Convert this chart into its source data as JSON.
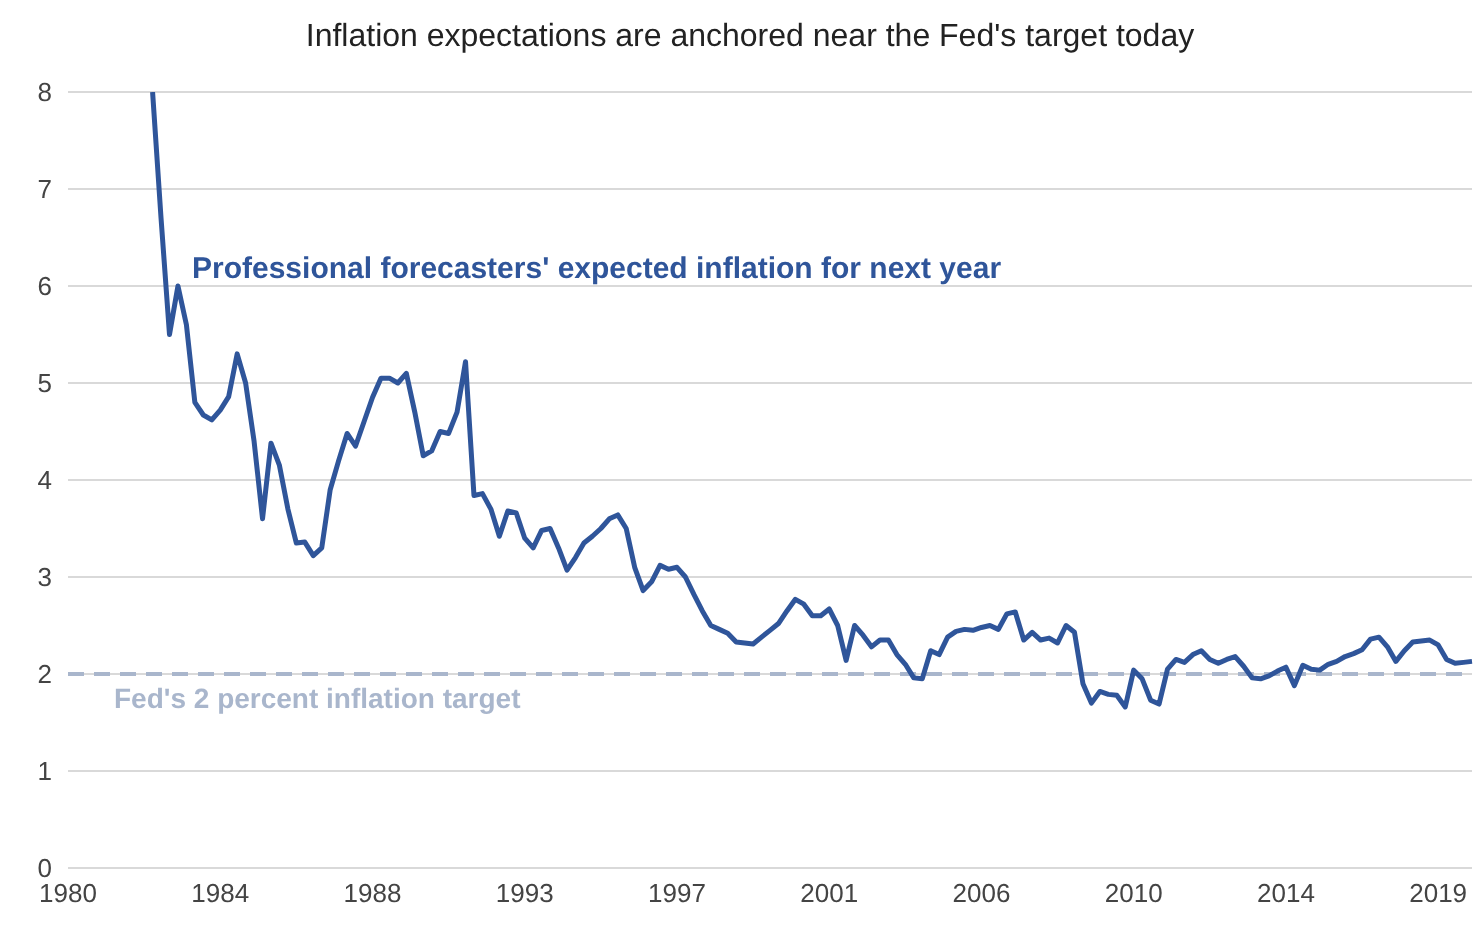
{
  "chart_data": {
    "type": "line",
    "title": "Inflation expectations are anchored near the Fed's target today",
    "categories": [
      "1980",
      null,
      null,
      null,
      null,
      null,
      null,
      null,
      null,
      null,
      null,
      null,
      null,
      null,
      null,
      null,
      null,
      null,
      "1984",
      null,
      null,
      null,
      null,
      null,
      null,
      null,
      null,
      null,
      null,
      null,
      null,
      null,
      null,
      null,
      null,
      null,
      "1988",
      null,
      null,
      null,
      null,
      null,
      null,
      null,
      null,
      null,
      null,
      null,
      null,
      null,
      null,
      null,
      null,
      null,
      "1993",
      null,
      null,
      null,
      null,
      null,
      null,
      null,
      null,
      null,
      null,
      null,
      null,
      null,
      null,
      null,
      null,
      null,
      "1997",
      null,
      null,
      null,
      null,
      null,
      null,
      null,
      null,
      null,
      null,
      null,
      null,
      null,
      null,
      null,
      null,
      null,
      "2001",
      null,
      null,
      null,
      null,
      null,
      null,
      null,
      null,
      null,
      null,
      null,
      null,
      null,
      null,
      null,
      null,
      null,
      "2006",
      null,
      null,
      null,
      null,
      null,
      null,
      null,
      null,
      null,
      null,
      null,
      null,
      null,
      null,
      null,
      null,
      null,
      "2010",
      null,
      null,
      null,
      null,
      null,
      null,
      null,
      null,
      null,
      null,
      null,
      null,
      null,
      null,
      null,
      null,
      null,
      "2014",
      null,
      null,
      null,
      null,
      null,
      null,
      null,
      null,
      null,
      null,
      null,
      null,
      null,
      null,
      null,
      null,
      null,
      "2019",
      null,
      null,
      null,
      null
    ],
    "series": [
      {
        "name": "Professional forecasters' expected inflation for next year",
        "color": "#2f559a",
        "values": [
          null,
          null,
          null,
          null,
          null,
          null,
          null,
          null,
          null,
          null,
          8.0,
          6.7,
          5.5,
          6.0,
          5.6,
          4.8,
          4.67,
          4.62,
          4.72,
          4.86,
          5.3,
          5.0,
          4.4,
          3.6,
          4.38,
          4.15,
          3.7,
          3.35,
          3.36,
          3.22,
          3.3,
          3.9,
          4.2,
          4.48,
          4.35,
          4.6,
          4.85,
          5.05,
          5.05,
          5.0,
          5.1,
          4.7,
          4.25,
          4.3,
          4.5,
          4.48,
          4.7,
          5.22,
          3.84,
          3.86,
          3.7,
          3.42,
          3.68,
          3.66,
          3.4,
          3.3,
          3.48,
          3.5,
          3.3,
          3.07,
          3.2,
          3.35,
          3.42,
          3.5,
          3.6,
          3.64,
          3.5,
          3.1,
          2.86,
          2.95,
          3.12,
          3.08,
          3.1,
          3.0,
          2.82,
          2.65,
          2.5,
          2.46,
          2.42,
          2.33,
          2.32,
          2.31,
          2.38,
          2.45,
          2.52,
          2.65,
          2.77,
          2.72,
          2.6,
          2.6,
          2.67,
          2.5,
          2.14,
          2.5,
          2.4,
          2.28,
          2.35,
          2.35,
          2.2,
          2.1,
          1.96,
          1.95,
          2.24,
          2.2,
          2.38,
          2.44,
          2.46,
          2.45,
          2.48,
          2.5,
          2.46,
          2.62,
          2.64,
          2.35,
          2.43,
          2.35,
          2.37,
          2.32,
          2.5,
          2.43,
          1.9,
          1.7,
          1.82,
          1.79,
          1.78,
          1.66,
          2.04,
          1.95,
          1.73,
          1.69,
          2.05,
          2.15,
          2.12,
          2.2,
          2.24,
          2.15,
          2.11,
          2.15,
          2.18,
          2.08,
          1.96,
          1.95,
          1.98,
          2.03,
          2.07,
          1.88,
          2.09,
          2.05,
          2.04,
          2.1,
          2.13,
          2.18,
          2.21,
          2.25,
          2.36,
          2.38,
          2.28,
          2.13,
          2.24,
          2.33,
          2.34,
          2.35,
          2.3,
          2.15,
          2.11,
          2.12,
          2.13
        ]
      }
    ],
    "ylim": [
      0,
      8
    ],
    "yticks": [
      0,
      1,
      2,
      3,
      4,
      5,
      6,
      7,
      8
    ],
    "grid": "y",
    "marker": "none",
    "line_style": "solid",
    "ref_lines": [
      {
        "axis": "y",
        "value": 2,
        "label": "Fed's 2 percent inflation target",
        "color": "#a9b6cc",
        "line_style": "dashed"
      }
    ]
  }
}
